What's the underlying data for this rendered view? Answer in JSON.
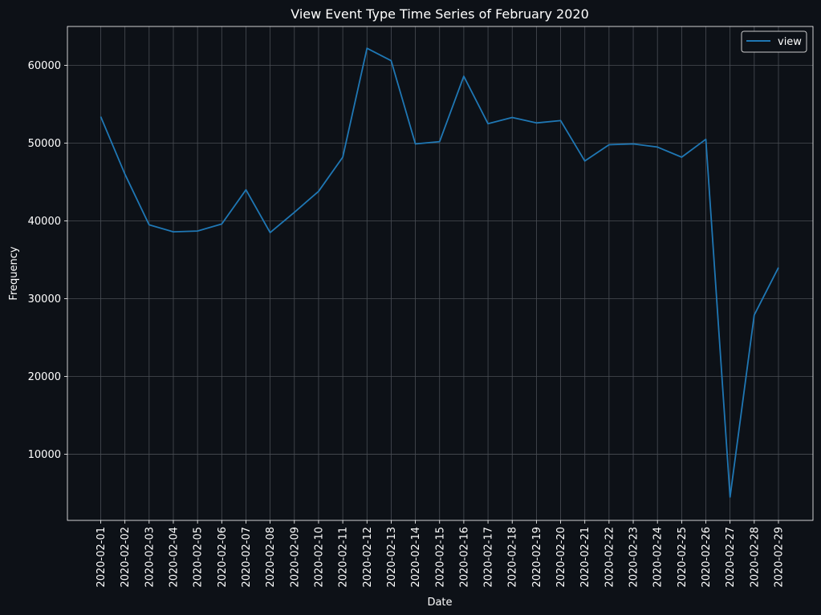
{
  "chart_data": {
    "type": "line",
    "title": "View Event Type Time Series of February 2020",
    "xlabel": "Date",
    "ylabel": "Frequency",
    "x": [
      "2020-02-01",
      "2020-02-02",
      "2020-02-03",
      "2020-02-04",
      "2020-02-05",
      "2020-02-06",
      "2020-02-07",
      "2020-02-08",
      "2020-02-09",
      "2020-02-10",
      "2020-02-11",
      "2020-02-12",
      "2020-02-13",
      "2020-02-14",
      "2020-02-15",
      "2020-02-16",
      "2020-02-17",
      "2020-02-18",
      "2020-02-19",
      "2020-02-20",
      "2020-02-21",
      "2020-02-22",
      "2020-02-23",
      "2020-02-24",
      "2020-02-25",
      "2020-02-26",
      "2020-02-27",
      "2020-02-28",
      "2020-02-29"
    ],
    "series": [
      {
        "name": "view",
        "color": "#1f77b4",
        "values": [
          53400,
          46000,
          39500,
          38600,
          38700,
          39600,
          44000,
          38500,
          41100,
          43800,
          48200,
          62200,
          60600,
          49900,
          50200,
          58600,
          52500,
          53300,
          52600,
          52900,
          47700,
          49800,
          49900,
          49500,
          48200,
          50500,
          4500,
          27900,
          34000
        ]
      }
    ],
    "ylim": [
      1500,
      65000
    ],
    "yticks": [
      10000,
      20000,
      30000,
      40000,
      50000,
      60000
    ],
    "grid": true,
    "legend": "top-right",
    "background": "#0d1117",
    "grid_color": "#4a4e55"
  }
}
